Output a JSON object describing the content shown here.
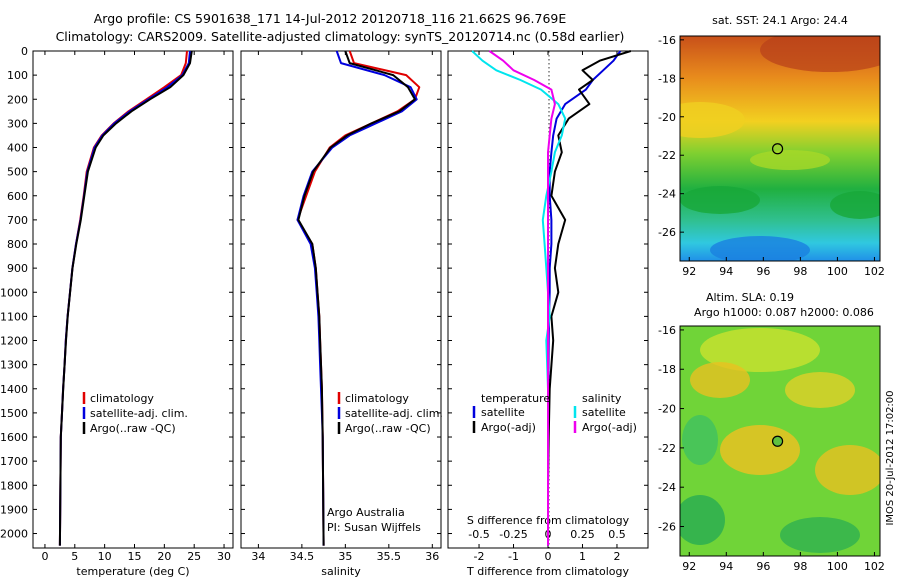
{
  "titles": {
    "line1": "Argo profile: CS 5901638_171 14-Jul-2012 20120718_116 21.662S 96.769E",
    "line2": "Climatology: CARS2009. Satellite-adjusted climatology: synTS_20120714.nc (0.58d earlier)"
  },
  "side_label": "IMOS 20-Jul-2012 17:02:00",
  "colors": {
    "climatology": "#e00000",
    "satellite": "#0000dd",
    "argo": "#000000",
    "cyan": "#00e5ee",
    "magenta": "#ee00ee"
  },
  "chart_data": [
    {
      "type": "line",
      "xlabel": "temperature (deg C)",
      "ylabel": "",
      "xlim": [
        -2,
        31.5
      ],
      "ylim": [
        2060,
        0
      ],
      "xticks": [
        0,
        5,
        10,
        15,
        20,
        25,
        30
      ],
      "yticks": [
        0,
        100,
        200,
        300,
        400,
        500,
        600,
        700,
        800,
        900,
        1000,
        1100,
        1200,
        1300,
        1400,
        1500,
        1600,
        1700,
        1800,
        1900,
        2000
      ],
      "legend": [
        "climatology",
        "satellite-adj. clim.",
        "Argo(..raw -QC)"
      ],
      "series": [
        {
          "name": "climatology",
          "color": "#e00000",
          "x": [
            23.8,
            23.6,
            22.8,
            20,
            17,
            14,
            11.5,
            9.5,
            8.2,
            7,
            6.5,
            5.9,
            5.2,
            4.6,
            4.2,
            3.8,
            3.5,
            3.3,
            3.05,
            2.85,
            2.65,
            2.5
          ],
          "y": [
            0,
            50,
            100,
            150,
            200,
            250,
            300,
            350,
            400,
            500,
            600,
            700,
            800,
            900,
            1000,
            1100,
            1200,
            1300,
            1400,
            1500,
            1600,
            2050
          ]
        },
        {
          "name": "satellite-adj. clim.",
          "color": "#0000dd",
          "x": [
            24.3,
            24.1,
            23,
            20.5,
            17.3,
            14.2,
            11.6,
            9.6,
            8.3,
            7.1,
            6.55,
            5.95,
            5.2,
            4.6,
            4.2,
            3.8,
            3.5,
            3.3,
            3.05,
            2.85,
            2.65,
            2.5
          ],
          "y": [
            0,
            50,
            100,
            150,
            200,
            250,
            300,
            350,
            400,
            500,
            600,
            700,
            800,
            900,
            1000,
            1100,
            1200,
            1300,
            1400,
            1500,
            1600,
            2050
          ]
        },
        {
          "name": "Argo(..raw -QC)",
          "color": "#000000",
          "x": [
            24.6,
            24.3,
            23.2,
            21,
            17.6,
            14.5,
            11.9,
            9.8,
            8.5,
            7.2,
            6.6,
            6,
            5.25,
            4.62,
            4.22,
            3.82,
            3.52,
            3.3,
            3.06,
            2.86,
            2.66,
            2.5
          ],
          "y": [
            0,
            50,
            100,
            150,
            200,
            250,
            300,
            350,
            400,
            500,
            600,
            700,
            800,
            900,
            1000,
            1100,
            1200,
            1300,
            1400,
            1500,
            1600,
            2050
          ]
        }
      ]
    },
    {
      "type": "line",
      "xlabel": "salinity",
      "xlim": [
        33.8,
        36.1
      ],
      "ylim": [
        2060,
        0
      ],
      "xticks": [
        34,
        34.5,
        35,
        35.5,
        36
      ],
      "legend": [
        "climatology",
        "satellite-adj. clim.",
        "Argo(..raw -QC)"
      ],
      "annotation": [
        "Argo Australia",
        "PI: Susan Wijffels"
      ],
      "series": [
        {
          "name": "climatology",
          "color": "#e00000",
          "x": [
            35.05,
            35.1,
            35.7,
            35.85,
            35.8,
            35.6,
            35.3,
            35.0,
            34.82,
            34.65,
            34.55,
            34.45,
            34.62,
            34.66,
            34.68,
            34.7,
            34.71,
            34.72,
            34.73,
            34.735,
            34.74,
            34.75
          ],
          "y": [
            0,
            50,
            100,
            150,
            200,
            250,
            300,
            350,
            400,
            500,
            600,
            700,
            800,
            900,
            1000,
            1100,
            1200,
            1300,
            1400,
            1500,
            1600,
            2050
          ]
        },
        {
          "name": "satellite-adj. clim.",
          "color": "#0000dd",
          "x": [
            34.9,
            34.95,
            35.45,
            35.75,
            35.82,
            35.65,
            35.35,
            35.05,
            34.85,
            34.62,
            34.52,
            34.45,
            34.6,
            34.65,
            34.67,
            34.69,
            34.7,
            34.71,
            34.72,
            34.73,
            34.74,
            34.75
          ],
          "y": [
            0,
            50,
            100,
            150,
            200,
            250,
            300,
            350,
            400,
            500,
            600,
            700,
            800,
            900,
            1000,
            1100,
            1200,
            1300,
            1400,
            1500,
            1600,
            2050
          ]
        },
        {
          "name": "Argo(..raw -QC)",
          "color": "#000000",
          "x": [
            35.0,
            35.05,
            35.55,
            35.72,
            35.8,
            35.62,
            35.3,
            35.02,
            34.83,
            34.63,
            34.53,
            34.46,
            34.62,
            34.66,
            34.68,
            34.7,
            34.71,
            34.72,
            34.73,
            34.735,
            34.74,
            34.75
          ],
          "y": [
            0,
            50,
            100,
            150,
            200,
            250,
            300,
            350,
            400,
            500,
            600,
            700,
            800,
            900,
            1000,
            1100,
            1200,
            1300,
            1400,
            1500,
            1600,
            2050
          ]
        }
      ]
    },
    {
      "type": "line",
      "xlabel": "T difference from climatology",
      "xlabel_top": "S difference from climatology",
      "xlim": [
        -2.9,
        2.9
      ],
      "ylim": [
        2060,
        0
      ],
      "xticks": [
        -2,
        -1,
        0,
        1,
        2
      ],
      "sticks": [
        "-0.5",
        "-0.25",
        "0",
        "0.25",
        "0.5"
      ],
      "legend_headers": [
        "temperature",
        "salinity"
      ],
      "legend": [
        "satellite",
        "Argo(-adj)",
        "satellite",
        "Argo(-adj)"
      ],
      "series": [
        {
          "name": "satellite",
          "color": "#0000dd",
          "x": [
            2.1,
            1.9,
            1.6,
            1.3,
            1.1,
            0.5,
            0.25,
            0.15,
            0.1,
            0.05,
            0.05,
            0.1,
            0.1,
            0.05,
            0.05,
            0.03,
            0.02,
            0.01,
            0,
            0,
            0
          ],
          "y": [
            0,
            40,
            80,
            120,
            160,
            220,
            280,
            350,
            420,
            500,
            600,
            700,
            800,
            900,
            1000,
            1100,
            1200,
            1400,
            1600,
            1800,
            2050
          ]
        },
        {
          "name": "Argo(-adj)",
          "color": "#000000",
          "x": [
            2.4,
            1.5,
            1.0,
            1.3,
            0.9,
            1.2,
            0.6,
            0.3,
            0.4,
            0.2,
            0.1,
            0.5,
            0.3,
            0.2,
            0.3,
            0.1,
            0.15,
            0.05,
            0.02,
            0,
            0
          ],
          "y": [
            0,
            40,
            80,
            120,
            160,
            220,
            280,
            350,
            420,
            500,
            600,
            700,
            800,
            900,
            1000,
            1100,
            1200,
            1400,
            1600,
            1800,
            2050
          ]
        },
        {
          "name": "satellite",
          "color": "#00e5ee",
          "x": [
            -2.2,
            -1.9,
            -1.5,
            -0.8,
            -0.2,
            0.3,
            0.5,
            0.4,
            0.2,
            0.1,
            -0.05,
            -0.15,
            -0.1,
            -0.05,
            0,
            0.05,
            -0.05,
            0,
            0,
            0,
            0
          ],
          "y": [
            0,
            40,
            80,
            120,
            160,
            220,
            280,
            350,
            420,
            500,
            600,
            700,
            800,
            900,
            1000,
            1100,
            1200,
            1400,
            1600,
            1800,
            2050
          ]
        },
        {
          "name": "Argo(-adj)",
          "color": "#ee00ee",
          "x": [
            -1.7,
            -1.3,
            -1.0,
            -0.4,
            0.1,
            0.2,
            0.1,
            0.05,
            0,
            0,
            0,
            0,
            0,
            0,
            0,
            0,
            0,
            0,
            0,
            0,
            0
          ],
          "y": [
            0,
            40,
            80,
            120,
            160,
            220,
            280,
            350,
            420,
            500,
            600,
            700,
            800,
            900,
            1000,
            1100,
            1200,
            1400,
            1600,
            1800,
            2050
          ]
        }
      ]
    },
    {
      "type": "heatmap",
      "title": "sat. SST: 24.1  Argo: 24.4",
      "xlim": [
        91.5,
        102.3
      ],
      "ylim": [
        -27.5,
        -15.8
      ],
      "xticks": [
        92,
        94,
        96,
        98,
        100,
        102
      ],
      "yticks": [
        -16,
        -18,
        -20,
        -22,
        -24,
        -26
      ],
      "marker": {
        "x": 96.769,
        "y": -21.662
      }
    },
    {
      "type": "heatmap",
      "title_lines": [
        "Altim. SLA: 0.19",
        "Argo h1000: 0.087 h2000: 0.086"
      ],
      "xlim": [
        91.5,
        102.3
      ],
      "ylim": [
        -27.5,
        -15.8
      ],
      "xticks": [
        92,
        94,
        96,
        98,
        100,
        102
      ],
      "yticks": [
        -16,
        -18,
        -20,
        -22,
        -24,
        -26
      ],
      "marker": {
        "x": 96.769,
        "y": -21.662
      }
    }
  ]
}
